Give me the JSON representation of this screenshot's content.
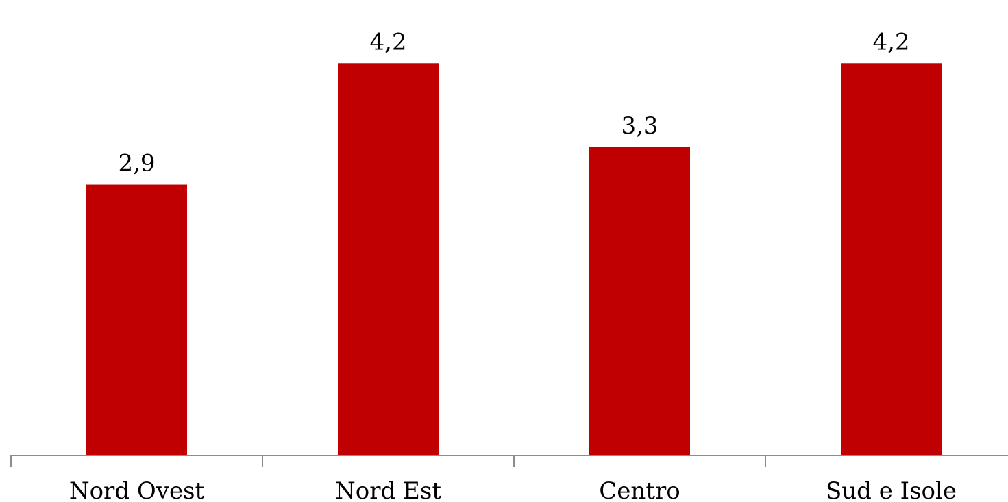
{
  "chart_data": {
    "type": "bar",
    "categories": [
      "Nord Ovest",
      "Nord Est",
      "Centro",
      "Sud e Isole"
    ],
    "values": [
      2.9,
      4.2,
      3.3,
      4.2
    ],
    "data_labels": [
      "2,9",
      "4,2",
      "3,3",
      "4,2"
    ],
    "title": "",
    "xlabel": "",
    "ylabel": "",
    "ylim": [
      0,
      4.4
    ],
    "grid": false,
    "legend": "none",
    "bar_color": "#c00000",
    "axis_color": "#8c8c8c"
  }
}
